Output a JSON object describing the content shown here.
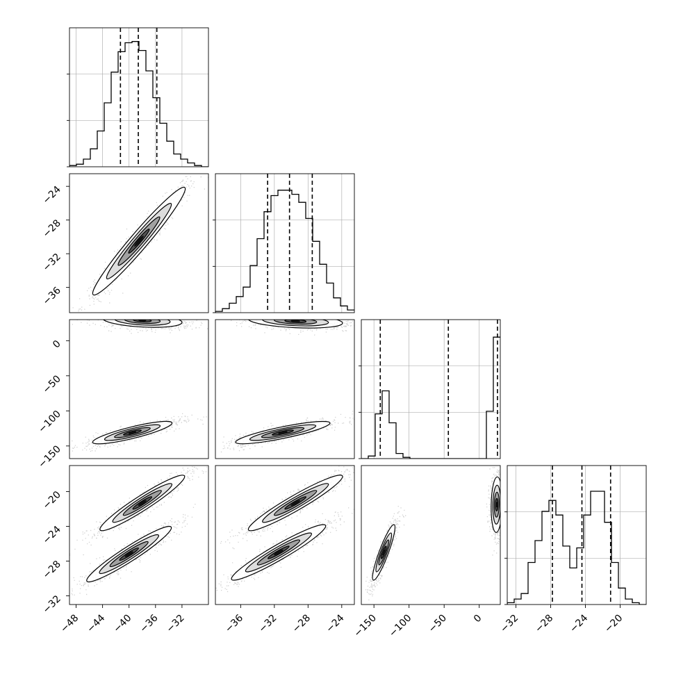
{
  "chart_data": {
    "type": "corner",
    "title": "",
    "parameters": [
      {
        "range": [
          -49,
          -28
        ],
        "ticks": [
          -48,
          -44,
          -40,
          -36,
          -32
        ],
        "tick_labels": [
          "−48",
          "−44",
          "−40",
          "−36",
          "−32"
        ],
        "quantiles": [
          -41.3,
          -38.6,
          -35.8
        ]
      },
      {
        "range": [
          -39,
          -22.5
        ],
        "ticks": [
          -36,
          -32,
          -28,
          -24
        ],
        "tick_labels": [
          "−36",
          "−32",
          "−28",
          "−24"
        ],
        "quantiles": [
          -32.8,
          -30.2,
          -27.5
        ]
      },
      {
        "range": [
          -168,
          30
        ],
        "ticks": [
          -150,
          -100,
          -50,
          0
        ],
        "tick_labels": [
          "−150",
          "−100",
          "−50",
          "0"
        ],
        "quantiles": [
          -141,
          -44,
          26
        ]
      },
      {
        "range": [
          -33,
          -17
        ],
        "ticks": [
          -32,
          -28,
          -24,
          -20
        ],
        "tick_labels": [
          "−32",
          "−28",
          "−24",
          "−20"
        ],
        "quantiles": [
          -27.8,
          -24.4,
          -21.1
        ]
      }
    ],
    "histograms": [
      {
        "edges_lo": -49,
        "bin_width": 1.05,
        "counts": [
          1,
          2,
          6,
          14,
          28,
          50,
          74,
          90,
          97,
          98,
          91,
          75,
          54,
          34,
          20,
          10,
          6,
          3,
          1,
          0
        ],
        "ymax": 100
      },
      {
        "edges_lo": -39,
        "bin_width": 0.825,
        "counts": [
          1,
          3,
          7,
          12,
          19,
          35,
          55,
          75,
          87,
          91,
          91,
          88,
          82,
          70,
          53,
          36,
          22,
          11,
          5,
          2
        ],
        "ymax": 95
      },
      {
        "edges_lo": -168,
        "bin_width": 9.9,
        "counts": [
          0,
          2,
          35,
          53,
          28,
          4,
          1,
          0,
          0,
          0,
          0,
          0,
          0,
          0,
          0,
          0,
          0,
          0,
          37,
          95
        ],
        "ymax": 100
      },
      {
        "edges_lo": -33,
        "bin_width": 0.8,
        "counts": [
          1,
          3,
          6,
          23,
          35,
          51,
          57,
          49,
          32,
          20,
          31,
          49,
          62,
          62,
          45,
          23,
          9,
          3,
          1,
          0
        ],
        "ymax": 70
      }
    ],
    "pairs": [
      {
        "x": 0,
        "y": 1,
        "blobs": [
          {
            "cx": -38.5,
            "cy": -30.5,
            "sx": 3.5,
            "sy": 3.2,
            "rho": 0.97
          }
        ]
      },
      {
        "x": 0,
        "y": 2,
        "blobs": [
          {
            "cx": -38,
            "cy": 29,
            "sx": 3,
            "sy": 5,
            "rho": -0.3
          },
          {
            "cx": -39.5,
            "cy": -131,
            "sx": 3,
            "sy": 8,
            "rho": 0.85
          }
        ]
      },
      {
        "x": 1,
        "y": 2,
        "blobs": [
          {
            "cx": -29.5,
            "cy": 28,
            "sx": 2.8,
            "sy": 5,
            "rho": -0.3
          },
          {
            "cx": -31,
            "cy": -131,
            "sx": 2.8,
            "sy": 8,
            "rho": 0.85
          }
        ]
      },
      {
        "x": 0,
        "y": 3,
        "blobs": [
          {
            "cx": -38,
            "cy": -21.3,
            "sx": 3.2,
            "sy": 1.6,
            "rho": 0.95
          },
          {
            "cx": -40,
            "cy": -27.2,
            "sx": 3.2,
            "sy": 1.6,
            "rho": 0.95
          }
        ]
      },
      {
        "x": 1,
        "y": 3,
        "blobs": [
          {
            "cx": -29.5,
            "cy": -21.3,
            "sx": 2.8,
            "sy": 1.6,
            "rho": 0.95
          },
          {
            "cx": -31.5,
            "cy": -27,
            "sx": 2.8,
            "sy": 1.6,
            "rho": 0.95
          }
        ]
      },
      {
        "x": 2,
        "y": 3,
        "blobs": [
          {
            "cx": 25,
            "cy": -21.5,
            "sx": 4,
            "sy": 1.6,
            "rho": 0.1
          },
          {
            "cx": -136,
            "cy": -27,
            "sx": 8,
            "sy": 1.6,
            "rho": 0.9
          }
        ]
      }
    ]
  }
}
